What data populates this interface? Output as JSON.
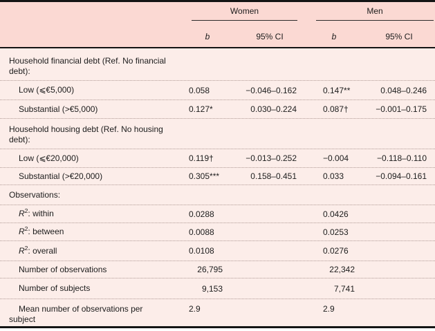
{
  "colors": {
    "header_bg": "#fbd9d3",
    "body_bg": "#fcede9",
    "rule": "#141414",
    "dotted_rule": "#b09a95",
    "text": "#1c1c1c"
  },
  "table": {
    "header": {
      "groups": [
        {
          "label": "Women",
          "b": "b",
          "ci": "95% CI"
        },
        {
          "label": "Men",
          "b": "b",
          "ci": "95% CI"
        }
      ]
    },
    "rows": [
      {
        "type": "section",
        "label": "Household financial debt (Ref. No financial debt):"
      },
      {
        "type": "data",
        "label": "Low (⩽€5,000)",
        "cells": {
          "wb": "0.058",
          "wci": "−0.046–0.162",
          "mb": "0.147**",
          "mci": "0.048–0.246"
        }
      },
      {
        "type": "data",
        "label": "Substantial (>€5,000)",
        "cells": {
          "wb": "0.127*",
          "wci": "0.030–0.224",
          "mb": "0.087†",
          "mci": "−0.001–0.175"
        }
      },
      {
        "type": "section",
        "label": "Household housing debt (Ref. No housing debt):"
      },
      {
        "type": "data",
        "label": "Low (⩽€20,000)",
        "cells": {
          "wb": "0.119†",
          "wci": "−0.013–0.252",
          "mb": "−0.004",
          "mci": "−0.118–0.110"
        }
      },
      {
        "type": "data",
        "label": "Substantial (>€20,000)",
        "cells": {
          "wb": "0.305***",
          "wci": "0.158–0.451",
          "mb": "0.033",
          "mci": "−0.094–0.161"
        }
      },
      {
        "type": "section",
        "label": "Observations:"
      },
      {
        "type": "stat",
        "label_parts": {
          "italic": "R",
          "sup": "2",
          "rest": ": within"
        },
        "cells": {
          "wb": "0.0288",
          "mb": "0.0426"
        }
      },
      {
        "type": "stat",
        "label_parts": {
          "italic": "R",
          "sup": "2",
          "rest": ": between"
        },
        "cells": {
          "wb": "0.0088",
          "mb": "0.0253"
        }
      },
      {
        "type": "stat",
        "label_parts": {
          "italic": "R",
          "sup": "2",
          "rest": ": overall"
        },
        "cells": {
          "wb": "0.0108",
          "mb": "0.0276"
        }
      },
      {
        "type": "stat",
        "label": "Number of observations",
        "cells": {
          "wb": "26,795",
          "mb": "22,342"
        }
      },
      {
        "type": "stat",
        "label": "Number of subjects",
        "cells": {
          "wb": "9,153",
          "mb": "7,741"
        }
      },
      {
        "type": "stat",
        "label": "Mean number of observations per subject",
        "cells": {
          "wb": "2.9",
          "mb": "2.9"
        }
      }
    ]
  }
}
